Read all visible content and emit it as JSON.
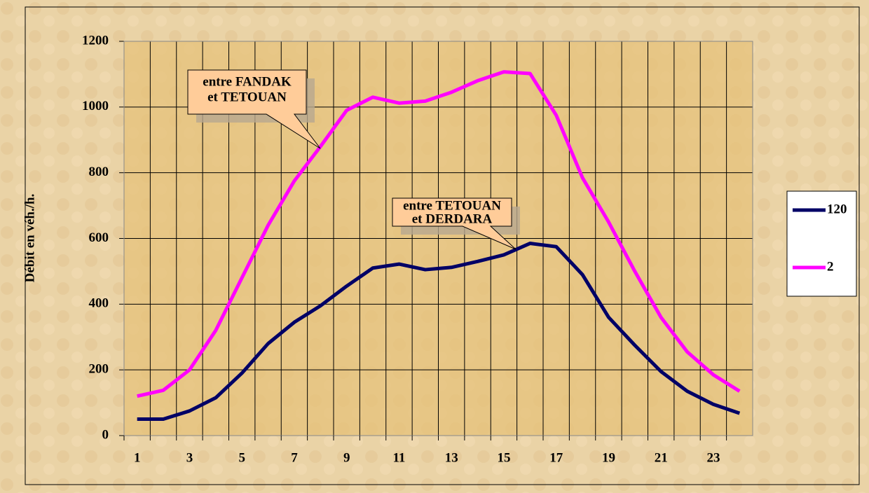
{
  "chart_data": {
    "type": "line",
    "categories": [
      "1",
      null,
      "3",
      null,
      "5",
      null,
      "7",
      null,
      "9",
      null,
      "11",
      null,
      "13",
      null,
      "15",
      null,
      "17",
      null,
      "19",
      null,
      "21",
      null,
      "23",
      null
    ],
    "series": [
      {
        "name": "120",
        "color": "#000066",
        "values": [
          50,
          50,
          75,
          115,
          190,
          280,
          345,
          395,
          455,
          510,
          522,
          505,
          512,
          530,
          550,
          585,
          575,
          490,
          360,
          275,
          195,
          135,
          95,
          68
        ]
      },
      {
        "name": "2",
        "color": "#ff00ff",
        "values": [
          120,
          138,
          200,
          320,
          480,
          640,
          775,
          880,
          990,
          1030,
          1012,
          1018,
          1045,
          1080,
          1107,
          1102,
          975,
          785,
          650,
          500,
          360,
          255,
          185,
          135
        ]
      }
    ],
    "ylabel": "Débit en véh./h.",
    "ylim": [
      0,
      1200
    ],
    "yticks": [
      0,
      200,
      400,
      600,
      800,
      1000,
      1200
    ],
    "grid": true,
    "legend": "right",
    "annotations": [
      {
        "lines": [
          "entre FANDAK",
          "et TETOUAN"
        ]
      },
      {
        "lines": [
          "entre TETOUAN",
          "et DERDARA"
        ]
      }
    ]
  }
}
